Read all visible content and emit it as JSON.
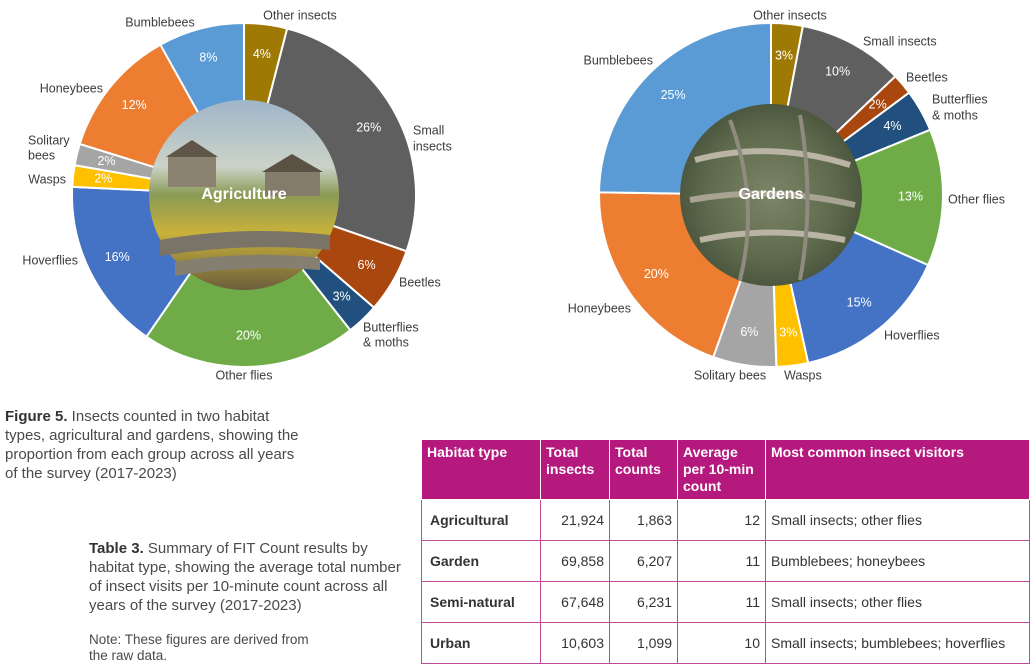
{
  "figure_caption": {
    "label": "Figure 5.",
    "text": " Insects counted in two habitat types, agricultural and gardens, showing the proportion from each group across all years of the survey (2017-2023)"
  },
  "table_caption": {
    "label": "Table 3.",
    "text": " Summary of FIT Count results by habitat type, showing the average total number of insect visits per 10-minute count across all years of the survey (2017-2023)"
  },
  "note": "Note: These figures are derived from the raw data.",
  "colors": {
    "table_header": "#b5197e",
    "table_border": "#c14a98"
  },
  "chart_data": [
    {
      "type": "pie",
      "donut": true,
      "title": "Agriculture",
      "start_category": "Other insects",
      "series": [
        {
          "label": "Other insects",
          "value": 4,
          "text": "4%",
          "color": "#9e7a05"
        },
        {
          "label": "Small insects",
          "value": 26,
          "text": "26%",
          "color": "#5f5f5f"
        },
        {
          "label": "Beetles",
          "value": 6,
          "text": "6%",
          "color": "#a9470f"
        },
        {
          "label": "Butterflies & moths",
          "value": 3,
          "text": "3%",
          "color": "#21507e"
        },
        {
          "label": "Other flies",
          "value": 20,
          "text": "20%",
          "color": "#6fac47"
        },
        {
          "label": "Hoverflies",
          "value": 16,
          "text": "16%",
          "color": "#4472c4"
        },
        {
          "label": "Wasps",
          "value": 2,
          "text": "2%",
          "color": "#ffc000"
        },
        {
          "label": "Solitary bees",
          "value": 2,
          "text": "2%",
          "color": "#a5a5a5"
        },
        {
          "label": "Honeybees",
          "value": 12,
          "text": "12%",
          "color": "#ed7d31"
        },
        {
          "label": "Bumblebees",
          "value": 8,
          "text": "8%",
          "color": "#5b9bd5"
        }
      ]
    },
    {
      "type": "pie",
      "donut": true,
      "title": "Gardens",
      "start_category": "Other insects",
      "series": [
        {
          "label": "Other insects",
          "value": 3,
          "text": "3%",
          "color": "#9e7a05"
        },
        {
          "label": "Small insects",
          "value": 10,
          "text": "10%",
          "color": "#5f5f5f"
        },
        {
          "label": "Beetles",
          "value": 2,
          "text": "2%",
          "color": "#a9470f"
        },
        {
          "label": "Butterflies & moths",
          "value": 4,
          "text": "4%",
          "color": "#21507e"
        },
        {
          "label": "Other flies",
          "value": 13,
          "text": "13%",
          "color": "#6fac47"
        },
        {
          "label": "Hoverflies",
          "value": 15,
          "text": "15%",
          "color": "#4472c4"
        },
        {
          "label": "Wasps",
          "value": 3,
          "text": "3%",
          "color": "#ffc000"
        },
        {
          "label": "Solitary bees",
          "value": 6,
          "text": "6%",
          "color": "#a5a5a5"
        },
        {
          "label": "Honeybees",
          "value": 20,
          "text": "20%",
          "color": "#ed7d31"
        },
        {
          "label": "Bumblebees",
          "value": 25,
          "text": "25%",
          "color": "#5b9bd5"
        }
      ]
    }
  ],
  "table": {
    "headers": [
      "Habitat type",
      "Total insects",
      "Total counts",
      "Average per 10-min count",
      "Most common insect visitors"
    ],
    "rows": [
      [
        "Agricultural",
        "21,924",
        "1,863",
        "12",
        "Small insects; other flies"
      ],
      [
        "Garden",
        "69,858",
        "6,207",
        "11",
        "Bumblebees; honeybees"
      ],
      [
        "Semi-natural",
        "67,648",
        "6,231",
        "11",
        "Small insects; other flies"
      ],
      [
        "Urban",
        "10,603",
        "1,099",
        "10",
        "Small insects; bumblebees; hoverflies"
      ]
    ]
  }
}
